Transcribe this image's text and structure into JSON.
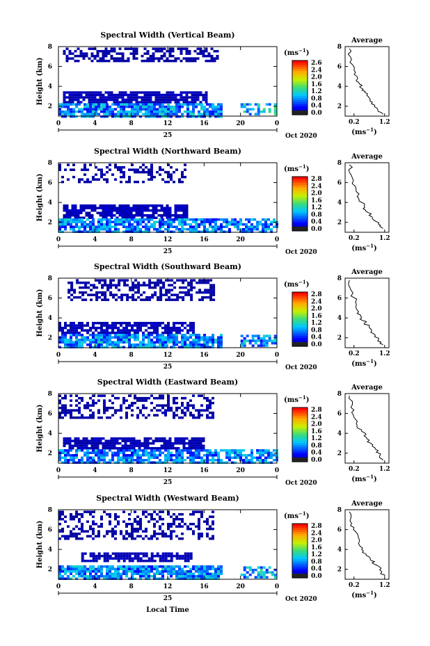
{
  "figure": {
    "x_axis_label": "Local Time",
    "date_left": "25",
    "date_right": "Oct 2020",
    "colorbar_unit": "(ms",
    "colorbar_unit_exp": "−1",
    "average_title": "Average",
    "average_unit": "(ms",
    "average_unit_exp": "−1"
  },
  "chart_data": [
    {
      "type": "heatmap",
      "title": "Spectral Width (Vertical Beam)",
      "ylabel": "Height (km)",
      "xlim": [
        0,
        24
      ],
      "ylim": [
        1,
        8
      ],
      "xticks": [
        "0",
        "4",
        "8",
        "12",
        "16",
        "20",
        "0"
      ],
      "yticks": [
        "2",
        "4",
        "6",
        "8"
      ],
      "colorbar": {
        "range": [
          0.0,
          2.8
        ],
        "ticks": [
          "2.6",
          "2.4",
          "2.0",
          "1.6",
          "1.2",
          "0.8",
          "0.4",
          "0.0"
        ]
      },
      "layers": [
        {
          "x": [
            0.5,
            17.5
          ],
          "y": [
            6.6,
            7.9
          ],
          "value": 0.05,
          "density": 0.55
        },
        {
          "x": [
            0.5,
            16.2
          ],
          "y": [
            2.3,
            3.5
          ],
          "value": 0.1,
          "density": 0.85
        },
        {
          "x": [
            0.0,
            18.0
          ],
          "y": [
            1.0,
            2.3
          ],
          "value": 0.6,
          "density": 0.85
        },
        {
          "x": [
            20.0,
            24.0
          ],
          "y": [
            1.2,
            2.3
          ],
          "value": 0.8,
          "density": 0.5
        }
      ],
      "average": {
        "xlabel": "(ms-1)",
        "xticks": [
          "0.2",
          "1.2"
        ],
        "yticks": [
          "2",
          "4",
          "6",
          "8"
        ],
        "x": [
          0.05,
          0.12,
          0.2,
          0.32,
          0.35,
          0.45,
          0.55,
          0.7,
          0.8,
          0.95,
          1.15
        ],
        "y": [
          7.8,
          6.7,
          5.6,
          4.8,
          4.4,
          3.8,
          3.4,
          2.8,
          2.4,
          1.8,
          1.2
        ]
      }
    },
    {
      "type": "heatmap",
      "title": "Spectral Width (Northward Beam)",
      "ylabel": "Height (km)",
      "xlim": [
        0,
        24
      ],
      "ylim": [
        1,
        8
      ],
      "xticks": [
        "0",
        "4",
        "8",
        "12",
        "16",
        "20",
        "0"
      ],
      "yticks": [
        "2",
        "4",
        "6",
        "8"
      ],
      "colorbar": {
        "range": [
          0.0,
          2.8
        ],
        "ticks": [
          "2.8",
          "2.4",
          "2.0",
          "1.6",
          "1.2",
          "0.8",
          "0.4",
          "0.0"
        ]
      },
      "layers": [
        {
          "x": [
            0.0,
            14.0
          ],
          "y": [
            6.0,
            7.9
          ],
          "value": 0.05,
          "density": 0.35
        },
        {
          "x": [
            0.5,
            14.0
          ],
          "y": [
            2.5,
            3.8
          ],
          "value": 0.1,
          "density": 0.85
        },
        {
          "x": [
            0.0,
            24.0
          ],
          "y": [
            1.0,
            2.4
          ],
          "value": 0.55,
          "density": 0.75
        }
      ],
      "average": {
        "xlabel": "(ms-1)",
        "xticks": [
          "0.2",
          "1.2"
        ],
        "yticks": [
          "2",
          "4",
          "6",
          "8"
        ],
        "x": [
          0.05,
          0.1,
          0.25,
          0.3,
          0.45,
          0.55,
          0.65,
          0.8,
          1.0,
          1.15
        ],
        "y": [
          7.8,
          6.8,
          5.6,
          4.6,
          4.0,
          3.5,
          3.0,
          2.4,
          1.8,
          1.4
        ]
      }
    },
    {
      "type": "heatmap",
      "title": "Spectral Width (Southward Beam)",
      "ylabel": "Height (km)",
      "xlim": [
        0,
        24
      ],
      "ylim": [
        1,
        8
      ],
      "xticks": [
        "0",
        "4",
        "8",
        "12",
        "16",
        "20",
        "0"
      ],
      "yticks": [
        "2",
        "4",
        "6",
        "8"
      ],
      "colorbar": {
        "range": [
          0.0,
          2.8
        ],
        "ticks": [
          "2.8",
          "2.4",
          "2.0",
          "1.6",
          "1.2",
          "0.8",
          "0.4",
          "0.0"
        ]
      },
      "layers": [
        {
          "x": [
            1.0,
            17.0
          ],
          "y": [
            5.8,
            7.9
          ],
          "value": 0.05,
          "density": 0.5
        },
        {
          "x": [
            0.0,
            15.0
          ],
          "y": [
            2.4,
            3.6
          ],
          "value": 0.1,
          "density": 0.75
        },
        {
          "x": [
            0.0,
            18.0
          ],
          "y": [
            1.0,
            2.4
          ],
          "value": 0.6,
          "density": 0.85
        },
        {
          "x": [
            20.0,
            24.0
          ],
          "y": [
            1.2,
            2.3
          ],
          "value": 0.6,
          "density": 0.55
        }
      ],
      "average": {
        "xlabel": "(ms-1)",
        "xticks": [
          "0.2",
          "1.2"
        ],
        "yticks": [
          "2",
          "4",
          "6",
          "8"
        ],
        "x": [
          0.05,
          0.1,
          0.25,
          0.35,
          0.45,
          0.55,
          0.7,
          0.85,
          1.0,
          1.15
        ],
        "y": [
          7.8,
          6.8,
          5.6,
          4.6,
          4.0,
          3.5,
          3.0,
          2.4,
          1.8,
          1.3
        ]
      }
    },
    {
      "type": "heatmap",
      "title": "Spectral Width (Eastward Beam)",
      "ylabel": "Height (km)",
      "xlim": [
        0,
        24
      ],
      "ylim": [
        1,
        8
      ],
      "xticks": [
        "0",
        "4",
        "8",
        "12",
        "16",
        "20",
        "0"
      ],
      "yticks": [
        "2",
        "4",
        "6",
        "8"
      ],
      "colorbar": {
        "range": [
          0.0,
          2.8
        ],
        "ticks": [
          "2.8",
          "2.4",
          "2.0",
          "1.6",
          "1.2",
          "0.8",
          "0.4",
          "0.0"
        ]
      },
      "layers": [
        {
          "x": [
            0.0,
            17.0
          ],
          "y": [
            5.5,
            7.9
          ],
          "value": 0.05,
          "density": 0.4
        },
        {
          "x": [
            0.5,
            16.0
          ],
          "y": [
            2.4,
            3.6
          ],
          "value": 0.1,
          "density": 0.8
        },
        {
          "x": [
            0.0,
            24.0
          ],
          "y": [
            1.0,
            2.4
          ],
          "value": 0.55,
          "density": 0.75
        }
      ],
      "average": {
        "xlabel": "(ms-1)",
        "xticks": [
          "0.2",
          "1.2"
        ],
        "yticks": [
          "2",
          "4",
          "6",
          "8"
        ],
        "x": [
          0.05,
          0.1,
          0.2,
          0.3,
          0.45,
          0.6,
          0.75,
          0.9,
          1.05,
          1.15
        ],
        "y": [
          7.8,
          6.6,
          5.6,
          4.8,
          4.2,
          3.6,
          3.0,
          2.4,
          1.8,
          1.3
        ]
      }
    },
    {
      "type": "heatmap",
      "title": "Spectral Width (Westward Beam)",
      "ylabel": "Height (km)",
      "xlim": [
        0,
        24
      ],
      "ylim": [
        1,
        8
      ],
      "xticks": [
        "0",
        "4",
        "8",
        "12",
        "16",
        "20",
        "0"
      ],
      "yticks": [
        "2",
        "4",
        "6",
        "8"
      ],
      "colorbar": {
        "range": [
          0.0,
          2.8
        ],
        "ticks": [
          "2.8",
          "2.4",
          "2.0",
          "1.6",
          "1.2",
          "0.8",
          "0.4",
          "0.0"
        ]
      },
      "layers": [
        {
          "x": [
            0.0,
            17.0
          ],
          "y": [
            5.0,
            7.9
          ],
          "value": 0.05,
          "density": 0.4
        },
        {
          "x": [
            2.5,
            14.5
          ],
          "y": [
            2.7,
            3.7
          ],
          "value": 0.1,
          "density": 0.75
        },
        {
          "x": [
            0.0,
            18.0
          ],
          "y": [
            1.0,
            2.4
          ],
          "value": 0.6,
          "density": 0.85
        },
        {
          "x": [
            20.0,
            24.0
          ],
          "y": [
            1.2,
            2.3
          ],
          "value": 0.7,
          "density": 0.5
        }
      ],
      "average": {
        "xlabel": "(ms-1)",
        "xticks": [
          "0.2",
          "1.2"
        ],
        "yticks": [
          "2",
          "4",
          "6",
          "8"
        ],
        "x": [
          0.05,
          0.12,
          0.25,
          0.35,
          0.45,
          0.6,
          0.75,
          0.95,
          1.1,
          1.2
        ],
        "y": [
          7.8,
          6.6,
          5.8,
          4.6,
          4.0,
          3.4,
          2.9,
          2.4,
          1.8,
          1.3
        ]
      }
    }
  ]
}
